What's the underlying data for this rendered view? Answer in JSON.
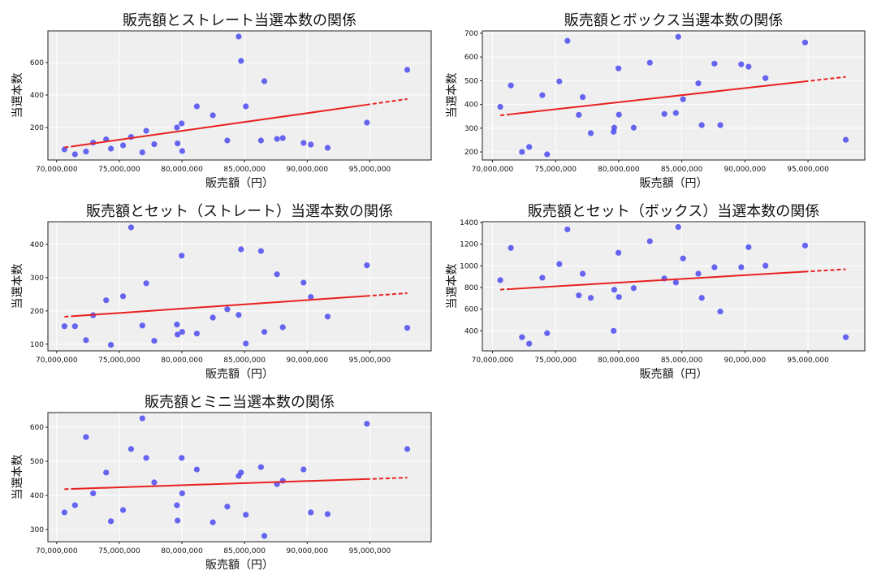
{
  "chart_data": [
    {
      "type": "scatter",
      "title": "販売額とストレート当選本数の関係",
      "xlabel": "販売額（円）",
      "ylabel": "当選本数",
      "xlim": [
        69300000,
        99900000
      ],
      "ylim": [
        0,
        795
      ],
      "xticks": [
        70000000,
        75000000,
        80000000,
        85000000,
        90000000,
        95000000
      ],
      "xtick_labels": [
        "70,000,000",
        "75,000,000",
        "80,000,000",
        "85,000,000",
        "90,000,000",
        "95,000,000"
      ],
      "yticks": [
        200,
        400,
        600
      ],
      "ytick_labels": [
        "200",
        "400",
        "600"
      ],
      "grid": true,
      "trendline": true,
      "x": [
        70620000,
        71460000,
        72340000,
        72910000,
        73950000,
        74330000,
        75300000,
        75940000,
        76840000,
        77150000,
        77790000,
        79600000,
        79650000,
        79980000,
        80020000,
        81190000,
        82470000,
        83620000,
        84530000,
        84720000,
        85100000,
        86310000,
        86580000,
        87590000,
        88050000,
        89710000,
        90290000,
        91630000,
        94770000,
        97990000
      ],
      "y": [
        65,
        35,
        52,
        107,
        127,
        70,
        90,
        142,
        47,
        180,
        97,
        200,
        102,
        225,
        55,
        330,
        275,
        120,
        760,
        610,
        330,
        120,
        485,
        130,
        135,
        105,
        95,
        75,
        230,
        555
      ]
    },
    {
      "type": "scatter",
      "title": "販売額とボックス当選本数の関係",
      "xlabel": "販売額（円）",
      "ylabel": "当選本数",
      "xlim": [
        69200000,
        99500000
      ],
      "ylim": [
        166,
        710
      ],
      "xticks": [
        70000000,
        75000000,
        80000000,
        85000000,
        90000000,
        95000000
      ],
      "xtick_labels": [
        "70,000,000",
        "75,000,000",
        "80,000,000",
        "85,000,000",
        "90,000,000",
        "95,000,000"
      ],
      "yticks": [
        200,
        300,
        400,
        500,
        600,
        700
      ],
      "ytick_labels": [
        "200",
        "300",
        "400",
        "500",
        "600",
        "700"
      ],
      "grid": true,
      "trendline": true,
      "x": [
        70620000,
        71460000,
        72340000,
        72910000,
        73950000,
        74330000,
        75300000,
        75940000,
        76840000,
        77150000,
        77790000,
        79600000,
        79650000,
        79980000,
        80020000,
        81190000,
        82470000,
        83620000,
        84530000,
        84720000,
        85100000,
        86310000,
        86580000,
        87590000,
        88050000,
        89710000,
        90290000,
        91630000,
        94770000,
        97990000
      ],
      "y": [
        390,
        480,
        200,
        221,
        439,
        190,
        497,
        668,
        356,
        431,
        279,
        285,
        302,
        552,
        357,
        302,
        576,
        360,
        364,
        685,
        422,
        489,
        313,
        572,
        313,
        569,
        559,
        511,
        661,
        251
      ]
    },
    {
      "type": "scatter",
      "title": "販売額とセット（ストレート）当選本数の関係",
      "xlabel": "販売額（円）",
      "ylabel": "当選本数",
      "xlim": [
        69300000,
        99900000
      ],
      "ylim": [
        80,
        468
      ],
      "xticks": [
        70000000,
        75000000,
        80000000,
        85000000,
        90000000,
        95000000
      ],
      "xtick_labels": [
        "70,000,000",
        "75,000,000",
        "80,000,000",
        "85,000,000",
        "90,000,000",
        "95,000,000"
      ],
      "yticks": [
        100,
        200,
        300,
        400
      ],
      "ytick_labels": [
        "100",
        "200",
        "300",
        "400"
      ],
      "grid": true,
      "trendline": true,
      "x": [
        70620000,
        71460000,
        72340000,
        72910000,
        73950000,
        74330000,
        75300000,
        75940000,
        76840000,
        77150000,
        77790000,
        79600000,
        79650000,
        79980000,
        80020000,
        81190000,
        82470000,
        83620000,
        84530000,
        84720000,
        85100000,
        86310000,
        86580000,
        87590000,
        88050000,
        89710000,
        90290000,
        91630000,
        94770000,
        97990000
      ],
      "y": [
        154,
        154,
        112,
        187,
        232,
        98,
        244,
        451,
        156,
        283,
        110,
        159,
        129,
        366,
        137,
        132,
        180,
        205,
        188,
        385,
        102,
        380,
        137,
        310,
        151,
        285,
        242,
        183,
        337,
        149
      ]
    },
    {
      "type": "scatter",
      "title": "販売額とセット（ボックス）当選本数の関係",
      "xlabel": "販売額（円）",
      "ylabel": "当選本数",
      "xlim": [
        69200000,
        99500000
      ],
      "ylim": [
        215,
        1407
      ],
      "xticks": [
        70000000,
        75000000,
        80000000,
        85000000,
        90000000,
        95000000
      ],
      "xtick_labels": [
        "70,000,000",
        "75,000,000",
        "80,000,000",
        "85,000,000",
        "90,000,000",
        "95,000,000"
      ],
      "yticks": [
        400,
        600,
        800,
        1000,
        1200,
        1400
      ],
      "ytick_labels": [
        "400",
        "600",
        "800",
        "1000",
        "1200",
        "1400"
      ],
      "grid": true,
      "trendline": true,
      "x": [
        70620000,
        71460000,
        72340000,
        72910000,
        73950000,
        74330000,
        75300000,
        75940000,
        76840000,
        77150000,
        77790000,
        79600000,
        79650000,
        79980000,
        80020000,
        81190000,
        82470000,
        83620000,
        84530000,
        84720000,
        85100000,
        86310000,
        86580000,
        87590000,
        88050000,
        89710000,
        90290000,
        91630000,
        94770000,
        97990000
      ],
      "y": [
        868,
        1165,
        341,
        281,
        890,
        378,
        1016,
        1336,
        727,
        927,
        704,
        400,
        779,
        1120,
        712,
        794,
        1227,
        883,
        846,
        1358,
        1068,
        927,
        704,
        987,
        578,
        987,
        1172,
        1001,
        1187,
        341
      ]
    },
    {
      "type": "scatter",
      "title": "販売額とミニ当選本数の関係",
      "xlabel": "販売額（円）",
      "ylabel": "当選本数",
      "xlim": [
        69300000,
        99900000
      ],
      "ylim": [
        264,
        643
      ],
      "xticks": [
        70000000,
        75000000,
        80000000,
        85000000,
        90000000,
        95000000
      ],
      "xtick_labels": [
        "70,000,000",
        "75,000,000",
        "80,000,000",
        "85,000,000",
        "90,000,000",
        "95,000,000"
      ],
      "yticks": [
        300,
        400,
        500,
        600
      ],
      "ytick_labels": [
        "300",
        "400",
        "500",
        "600"
      ],
      "grid": true,
      "trendline": true,
      "x": [
        70620000,
        71460000,
        72340000,
        72910000,
        73950000,
        74330000,
        75300000,
        75940000,
        76840000,
        77150000,
        77790000,
        79600000,
        79650000,
        79980000,
        80020000,
        81190000,
        82470000,
        83620000,
        84530000,
        84720000,
        85100000,
        86310000,
        86580000,
        87590000,
        88050000,
        89710000,
        90290000,
        91630000,
        94770000,
        97990000
      ],
      "y": [
        350,
        371,
        571,
        406,
        467,
        324,
        357,
        536,
        626,
        510,
        438,
        371,
        326,
        510,
        406,
        476,
        321,
        367,
        457,
        467,
        343,
        483,
        281,
        433,
        443,
        476,
        350,
        345,
        610,
        536
      ]
    }
  ],
  "colors": {
    "points": "#4b4bf0",
    "trendline": "#e82020",
    "plot_background": "#efefef",
    "grid": "#ffffff"
  }
}
